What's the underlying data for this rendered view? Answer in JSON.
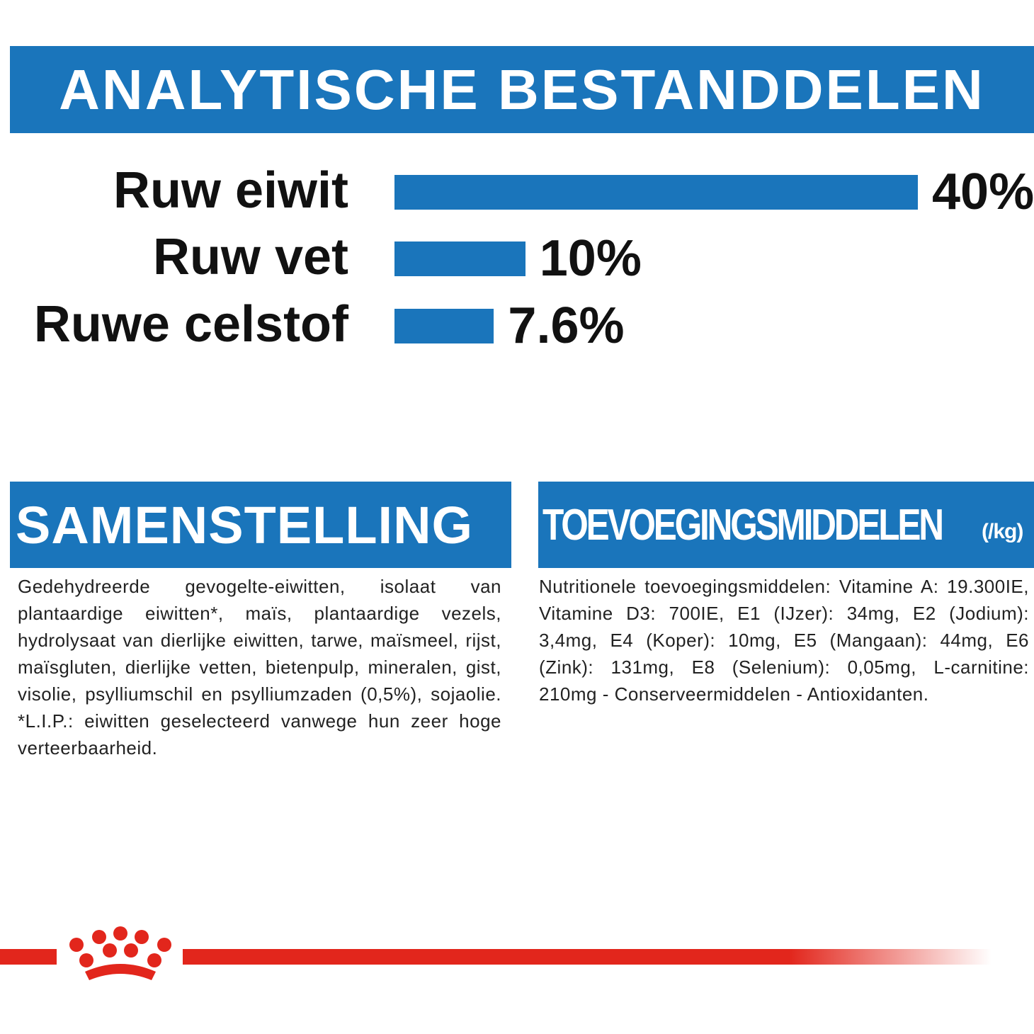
{
  "chart_data": {
    "type": "barh",
    "title": "ANALYTISCHE BESTANDDELEN",
    "categories": [
      "Ruw eiwit",
      "Ruw vet",
      "Ruwe celstof"
    ],
    "values": [
      40,
      10,
      7.6
    ],
    "value_labels": [
      "40%",
      "10%",
      "7.6%"
    ],
    "color": "#1a75bb"
  },
  "composition": {
    "title": "SAMENSTELLING",
    "text": "Gedehydreerde gevogelte-eiwitten, isolaat van plantaardige eiwitten*, maïs, plantaardige vezels, hydrolysaat van dierlijke eiwitten, tarwe, maïsmeel, rijst, maïsgluten, dierlijke vetten, bietenpulp, mineralen, gist, visolie, psylliumschil en psylliumzaden (0,5%), sojaolie. *L.I.P.: eiwitten geselecteerd vanwege hun zeer hoge verteerbaarheid."
  },
  "additives": {
    "title": "TOEVOEGINGSMIDDELEN",
    "unit": "(/kg)",
    "text": "Nutritionele toevoegingsmiddelen: Vitamine A: 19.300IE, Vitamine D3: 700IE, E1 (IJzer): 34mg, E2 (Jodium): 3,4mg, E4 (Koper): 10mg, E5 (Mangaan): 44mg, E6 (Zink): 131mg, E8 (Selenium): 0,05mg, L-carnitine: 210mg - Conserveermiddelen - Antioxidanten."
  }
}
